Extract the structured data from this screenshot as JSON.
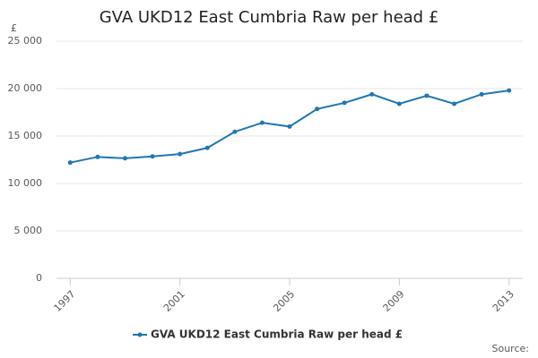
{
  "chart_data": {
    "type": "line",
    "title": "GVA UKD12 East Cumbria Raw per head £",
    "y_label": "£",
    "source": "Source:",
    "x": [
      1997,
      1998,
      1999,
      2000,
      2001,
      2002,
      2003,
      2004,
      2005,
      2006,
      2007,
      2008,
      2009,
      2010,
      2011,
      2012,
      2013
    ],
    "series": [
      {
        "name": "GVA UKD12 East Cumbria Raw per head £",
        "color": "#1f77b4",
        "values": [
          12200,
          12800,
          12650,
          12850,
          13100,
          13750,
          15450,
          16400,
          16000,
          17850,
          18500,
          19400,
          18400,
          19250,
          18400,
          19400,
          19800
        ]
      }
    ],
    "xlim": [
      1996.5,
      2013.5
    ],
    "xticks": [
      1997,
      2001,
      2005,
      2009,
      2013
    ],
    "ylim": [
      0,
      25000
    ],
    "yticks": [
      0,
      {
        "value": 5000,
        "label": "5 000"
      },
      {
        "value": 10000,
        "label": "10 000"
      },
      {
        "value": 15000,
        "label": "15 000"
      },
      {
        "value": 20000,
        "label": "20 000"
      },
      {
        "value": 25000,
        "label": "25 000"
      }
    ],
    "grid": true,
    "legend": "bottom"
  }
}
